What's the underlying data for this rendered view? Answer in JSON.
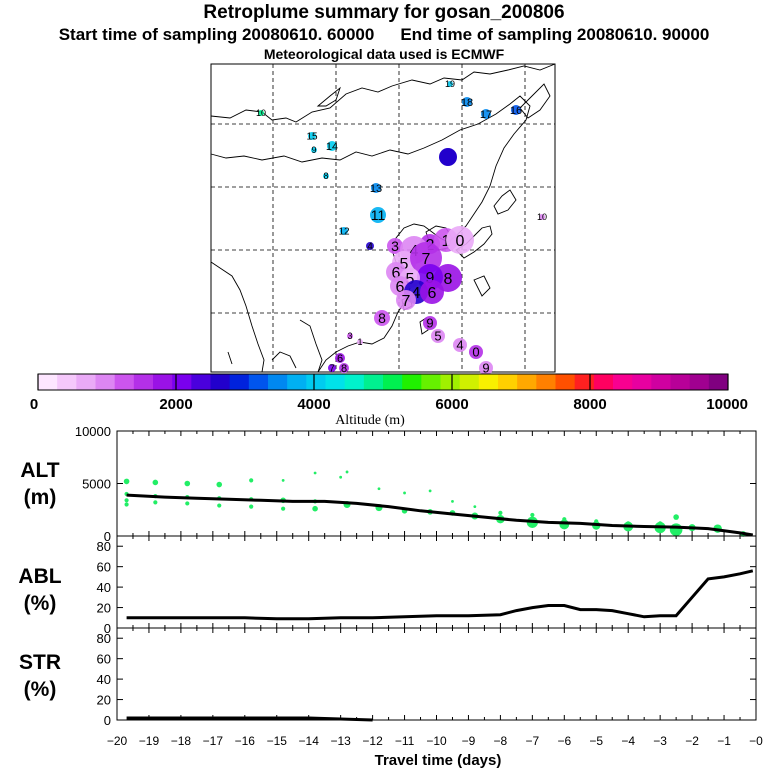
{
  "title": "Retroplume summary for gosan_200806",
  "subtitle_start": "Start time of sampling 20080610. 60000",
  "subtitle_end": "End time of sampling 20080610. 90000",
  "subtitle_met": "Meteorological data used is ECMWF",
  "colorbar": {
    "label": "Altitude  (m)",
    "ticks": [
      "0",
      "2000",
      "4000",
      "6000",
      "8000",
      "10000"
    ],
    "colors": [
      "#fde6ff",
      "#f5c8fb",
      "#eaaaf7",
      "#dd86f3",
      "#cc55ee",
      "#b430e8",
      "#9a12e6",
      "#7a00ee",
      "#4a00dd",
      "#2200cc",
      "#0022dd",
      "#0055ee",
      "#0088f0",
      "#00b0f2",
      "#00ccf0",
      "#00e2ea",
      "#00f2cc",
      "#00f090",
      "#00f050",
      "#20f000",
      "#66f000",
      "#a0f000",
      "#d0f000",
      "#f8f000",
      "#ffd000",
      "#ffa800",
      "#ff8000",
      "#ff5000",
      "#ff2020",
      "#ff0060",
      "#f80090",
      "#e800a0",
      "#d000a0",
      "#b80098",
      "#a00090",
      "#800080"
    ]
  },
  "map": {
    "labels": [
      {
        "t": "19",
        "c": "#00c8ee"
      },
      {
        "t": "18",
        "c": "#0088f0"
      },
      {
        "t": "17",
        "c": "#0088f0"
      },
      {
        "t": "16",
        "c": "#0055ee"
      },
      {
        "t": "10",
        "c": "#00f090"
      },
      {
        "t": "15",
        "c": "#00ccf0"
      },
      {
        "t": "9",
        "c": "#00ccf0"
      },
      {
        "t": "14",
        "c": "#00ccf0"
      },
      {
        "t": "8",
        "c": "#00ccf0"
      },
      {
        "t": "13",
        "c": "#0088f0"
      },
      {
        "t": "11",
        "c": "#00b0f2"
      },
      {
        "t": "10",
        "c": "#dd86f3"
      },
      {
        "t": "12",
        "c": "#00b0f2"
      },
      {
        "t": "4",
        "c": "#2200cc"
      },
      {
        "t": "3",
        "c": "#cc55ee"
      },
      {
        "t": "2",
        "c": "#b430e8"
      },
      {
        "t": "1",
        "c": "#cc55ee"
      },
      {
        "t": "0",
        "c": "#eaaaf7"
      },
      {
        "t": "4",
        "c": "#dd86f3"
      },
      {
        "t": "5",
        "c": "#eaaaf7"
      },
      {
        "t": "6",
        "c": "#dd86f3"
      },
      {
        "t": "7",
        "c": "#b430e8"
      },
      {
        "t": "8",
        "c": "#9a12e6"
      },
      {
        "t": "9",
        "c": "#7a00ee"
      },
      {
        "t": "5",
        "c": "#eaaaf7"
      },
      {
        "t": "6",
        "c": "#dd86f3"
      },
      {
        "t": "4",
        "c": "#2200cc"
      },
      {
        "t": "6",
        "c": "#9a12e6"
      },
      {
        "t": "7",
        "c": "#dd86f3"
      },
      {
        "t": "8",
        "c": "#cc55ee"
      },
      {
        "t": "9",
        "c": "#b430e8"
      },
      {
        "t": "5",
        "c": "#dd86f3"
      },
      {
        "t": "4",
        "c": "#dd86f3"
      },
      {
        "t": "0",
        "c": "#b430e8"
      },
      {
        "t": "3",
        "c": "#cc55ee"
      },
      {
        "t": "1",
        "c": "#eaaaf7"
      },
      {
        "t": "6",
        "c": "#9a12e6"
      },
      {
        "t": "7",
        "c": "#7a00ee"
      },
      {
        "t": "8",
        "c": "#b430e8"
      },
      {
        "t": "9",
        "c": "#dd86f3"
      }
    ]
  },
  "chart_data": [
    {
      "type": "scatter",
      "name": "ALT",
      "ylabel": "ALT\n(m)",
      "ylabel_lines": [
        "ALT",
        "(m)"
      ],
      "xlim": [
        -20,
        0
      ],
      "ylim": [
        0,
        10000
      ],
      "yticks": [
        "0",
        "5000",
        "10000"
      ],
      "line_color": "#000000",
      "point_color": "#22ee66",
      "mean_line": {
        "x": [
          -19.7,
          -18.5,
          -17.5,
          -16.5,
          -15.5,
          -14.5,
          -13.5,
          -12.5,
          -11.5,
          -10.5,
          -9.5,
          -8.5,
          -7.5,
          -6.5,
          -5.5,
          -4.5,
          -3.5,
          -2.5,
          -1.5,
          -0.5,
          -0.1
        ],
        "y": [
          3900,
          3700,
          3600,
          3500,
          3400,
          3300,
          3300,
          3100,
          2800,
          2400,
          2100,
          1800,
          1500,
          1300,
          1200,
          1000,
          900,
          850,
          700,
          300,
          100
        ]
      },
      "points": {
        "x": [
          -19.7,
          -19.7,
          -19.7,
          -19.7,
          -18.8,
          -18.8,
          -18.8,
          -17.8,
          -17.8,
          -17.8,
          -16.8,
          -16.8,
          -16.8,
          -15.8,
          -15.8,
          -15.8,
          -14.8,
          -14.8,
          -14.8,
          -13.8,
          -13.8,
          -13.8,
          -13.0,
          -12.8,
          -12.8,
          -11.8,
          -11.8,
          -11.0,
          -11.0,
          -10.2,
          -10.2,
          -9.5,
          -9.5,
          -8.8,
          -8.8,
          -8.0,
          -8.0,
          -7.0,
          -7.0,
          -6.0,
          -6.0,
          -5.0,
          -5.0,
          -4.0,
          -4.0,
          -3.0,
          -3.0,
          -2.5,
          -2.5,
          -2.0,
          -1.2,
          -0.4
        ],
        "y": [
          5200,
          4000,
          3400,
          3000,
          5100,
          3800,
          3200,
          5000,
          3700,
          3100,
          4900,
          3600,
          2900,
          5300,
          3500,
          2800,
          5300,
          3400,
          2600,
          6000,
          3300,
          2600,
          5600,
          6100,
          3000,
          4500,
          2700,
          4100,
          2400,
          4300,
          2300,
          3300,
          2200,
          2800,
          1900,
          2200,
          1600,
          2000,
          1300,
          1600,
          1100,
          1400,
          1000,
          1200,
          900,
          1200,
          800,
          1800,
          600,
          800,
          700,
          200
        ],
        "size": [
          4,
          3,
          3,
          3,
          4,
          3,
          3,
          4,
          3,
          3,
          4,
          3,
          3,
          3,
          3,
          3,
          2,
          4,
          3,
          2,
          3,
          4,
          2,
          2,
          5,
          2,
          5,
          2,
          4,
          2,
          4,
          2,
          4,
          2,
          5,
          3,
          6,
          3,
          8,
          3,
          7,
          3,
          6,
          3,
          7,
          3,
          8,
          4,
          9,
          5,
          6,
          4
        ]
      }
    },
    {
      "type": "line",
      "name": "ABL",
      "ylabel": "ABL\n(%)",
      "ylabel_lines": [
        "ABL",
        "(%)"
      ],
      "xlim": [
        -20,
        0
      ],
      "ylim": [
        0,
        90
      ],
      "yticks": [
        "0",
        "20",
        "40",
        "60",
        "80"
      ],
      "x": [
        -19.7,
        -18,
        -16,
        -15,
        -14,
        -13,
        -12,
        -11,
        -10,
        -9,
        -8,
        -7.5,
        -7,
        -6.5,
        -6,
        -5.5,
        -5,
        -4.5,
        -4,
        -3.5,
        -3,
        -2.5,
        -2,
        -1.5,
        -1,
        -0.5,
        -0.1
      ],
      "y": [
        10,
        10,
        10,
        9,
        9,
        10,
        10,
        11,
        12,
        12,
        13,
        17,
        20,
        22,
        22,
        18,
        18,
        17,
        14,
        11,
        12,
        12,
        30,
        48,
        50,
        53,
        56
      ]
    },
    {
      "type": "line",
      "name": "STR",
      "ylabel": "STR\n(%)",
      "ylabel_lines": [
        "STR",
        "(%)"
      ],
      "xlim": [
        -20,
        0
      ],
      "ylim": [
        0,
        90
      ],
      "yticks": [
        "0",
        "20",
        "40",
        "60",
        "80"
      ],
      "x": [
        -19.7,
        -18,
        -16,
        -14,
        -13,
        -12
      ],
      "y": [
        2,
        2,
        2,
        2,
        1,
        0
      ]
    }
  ],
  "xaxis": {
    "label": "Travel time (days)",
    "ticks": [
      "−20",
      "−19",
      "−18",
      "−17",
      "−16",
      "−15",
      "−14",
      "−13",
      "−12",
      "−11",
      "−10",
      "−9",
      "−8",
      "−7",
      "−6",
      "−5",
      "−4",
      "−3",
      "−2",
      "−1",
      "−0"
    ]
  }
}
